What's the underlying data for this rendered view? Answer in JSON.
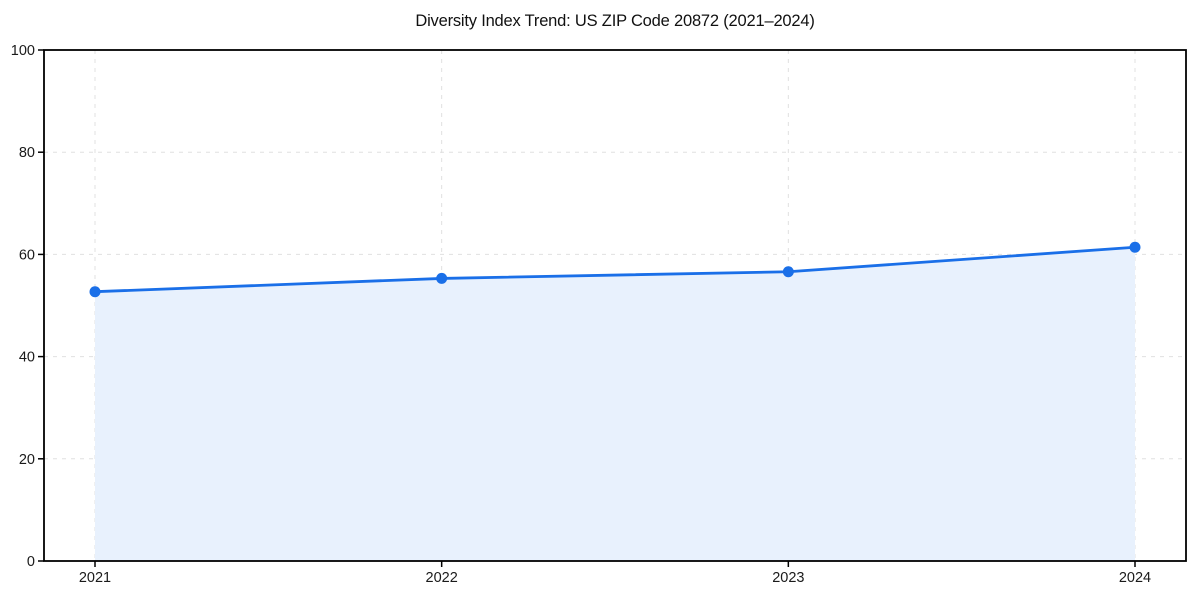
{
  "figure": {
    "title": "Diversity Index Trend: US ZIP Code 20872 (2021–2024)"
  },
  "chart_data": {
    "type": "line",
    "title": "Diversity Index Trend: US ZIP Code 20872 (2021–2024)",
    "x": [
      "2021",
      "2022",
      "2023",
      "2024"
    ],
    "series": [
      {
        "name": "Diversity Index",
        "values": [
          52.7,
          55.3,
          56.6,
          61.4
        ]
      }
    ],
    "xlabel": "",
    "ylabel": "",
    "ylim": [
      0,
      100
    ],
    "yticks": [
      0,
      20,
      40,
      60,
      80,
      100
    ],
    "grid": true,
    "grid_style": "dashed",
    "legend_position": "none",
    "marker": "circle",
    "area_fill": true,
    "colors": {
      "line": "#1a6fe8",
      "fill": "#e8f1fd",
      "grid": "#e0e0e0",
      "spine": "#000000",
      "tick_text": "#1a1a1a",
      "background": "#ffffff"
    }
  }
}
